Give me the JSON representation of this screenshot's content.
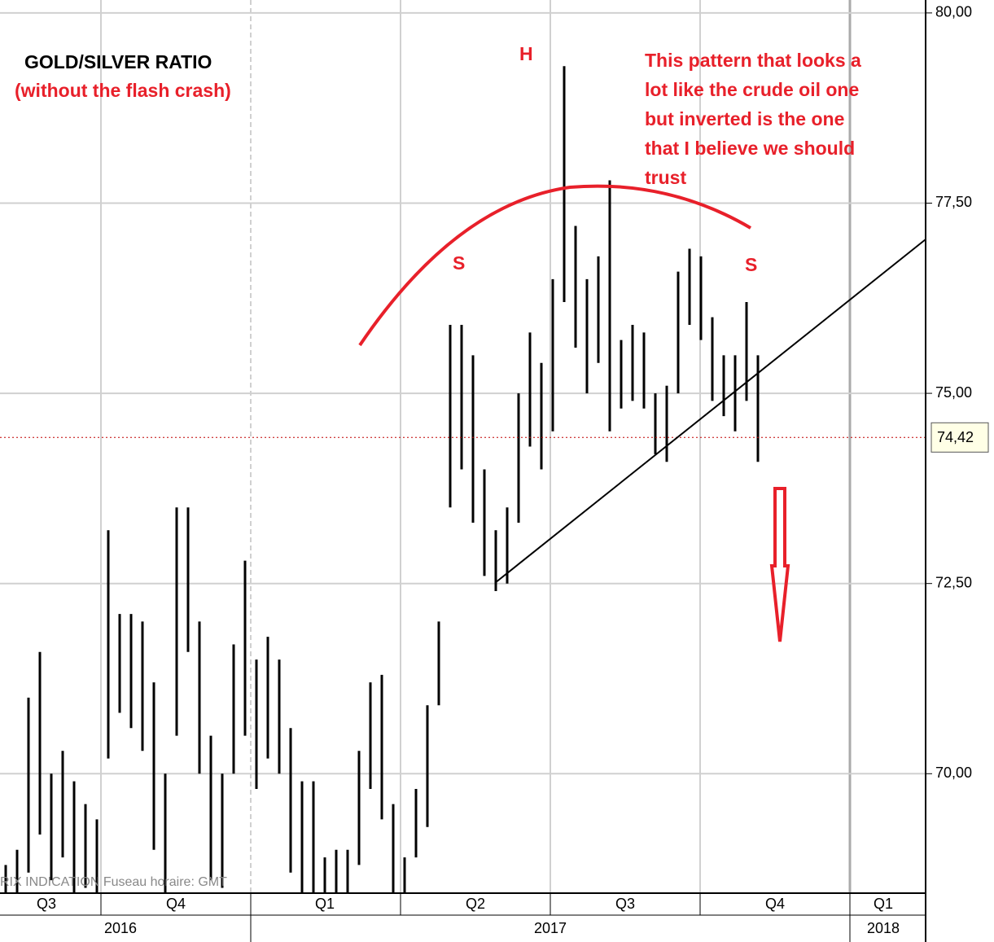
{
  "chart_data": {
    "type": "highlow",
    "title": "GOLD/SILVER RATIO",
    "subtitle": "(without the flash crash)",
    "annotations": {
      "head": "H",
      "left_shoulder": "S",
      "right_shoulder": "S",
      "note": [
        "This pattern that looks a",
        "lot like the crude oil one",
        "but inverted is the one",
        "that I believe we should",
        "trust"
      ],
      "watermark": "RIX INDICATION   Fuseau horaire: GMT"
    },
    "quarters": [
      "Q3",
      "Q4",
      "Q1",
      "Q2",
      "Q3",
      "Q4",
      "Q1"
    ],
    "years": [
      "2016",
      "2017",
      "2018"
    ],
    "categories": [
      null,
      null,
      null,
      null,
      null,
      null,
      null,
      null,
      null,
      null,
      null,
      null,
      null,
      null,
      null,
      null,
      null,
      null,
      null,
      null,
      null,
      null,
      null,
      null,
      null,
      null,
      null,
      null,
      null,
      null,
      null,
      null,
      null,
      null,
      null,
      null,
      null,
      null,
      null,
      null,
      null,
      null,
      null,
      null,
      null,
      null,
      null,
      null,
      null,
      null,
      null,
      null,
      null,
      null,
      null,
      null,
      null,
      null,
      null,
      null,
      null,
      null,
      null,
      null,
      null,
      null,
      null
    ],
    "high": [
      68.8,
      69.0,
      71.0,
      71.6,
      70.0,
      70.3,
      69.9,
      69.6,
      69.4,
      73.2,
      72.1,
      72.1,
      72.0,
      71.2,
      70.0,
      73.5,
      73.5,
      72.0,
      70.5,
      70.0,
      71.7,
      72.8,
      71.5,
      71.8,
      71.5,
      70.6,
      69.9,
      69.9,
      68.9,
      69.0,
      69.0,
      70.3,
      71.2,
      71.3,
      69.6,
      68.9,
      69.8,
      70.9,
      72.0,
      75.9,
      75.9,
      75.5,
      74.0,
      73.2,
      73.5,
      75.0,
      75.8,
      75.4,
      76.5,
      79.3,
      77.2,
      76.5,
      76.8,
      77.8,
      75.7,
      75.9,
      75.8,
      75.0,
      75.1,
      76.6,
      76.9,
      76.8,
      76.0,
      75.5,
      75.5,
      76.2,
      75.5
    ],
    "low": [
      68.43,
      68.43,
      68.7,
      69.2,
      68.6,
      68.9,
      68.43,
      68.5,
      68.43,
      70.2,
      70.8,
      70.6,
      70.3,
      69.0,
      68.43,
      70.5,
      71.6,
      70.0,
      68.6,
      68.5,
      70.0,
      70.5,
      69.8,
      70.2,
      70.0,
      68.7,
      68.43,
      68.43,
      68.43,
      68.43,
      68.43,
      68.8,
      69.8,
      69.4,
      68.43,
      68.43,
      68.9,
      69.3,
      70.9,
      73.5,
      74.0,
      73.3,
      72.6,
      72.4,
      72.5,
      73.3,
      74.3,
      74.0,
      74.5,
      76.2,
      75.6,
      75.0,
      75.4,
      74.5,
      74.8,
      74.9,
      74.8,
      74.2,
      74.1,
      75.0,
      75.9,
      75.7,
      74.9,
      74.7,
      74.5,
      74.9,
      74.1
    ],
    "color": "#000000",
    "last_price": {
      "value": 74.42,
      "label": "74,42"
    },
    "ylim": [
      68.43,
      80.17
    ],
    "yticks": [
      {
        "value": 70,
        "label": "70,00"
      },
      {
        "value": 72.5,
        "label": "72,50"
      },
      {
        "value": 75,
        "label": "75,00"
      },
      {
        "value": 77.5,
        "label": "77,50"
      },
      {
        "value": 80,
        "label": "80,00"
      }
    ],
    "grid": true
  }
}
